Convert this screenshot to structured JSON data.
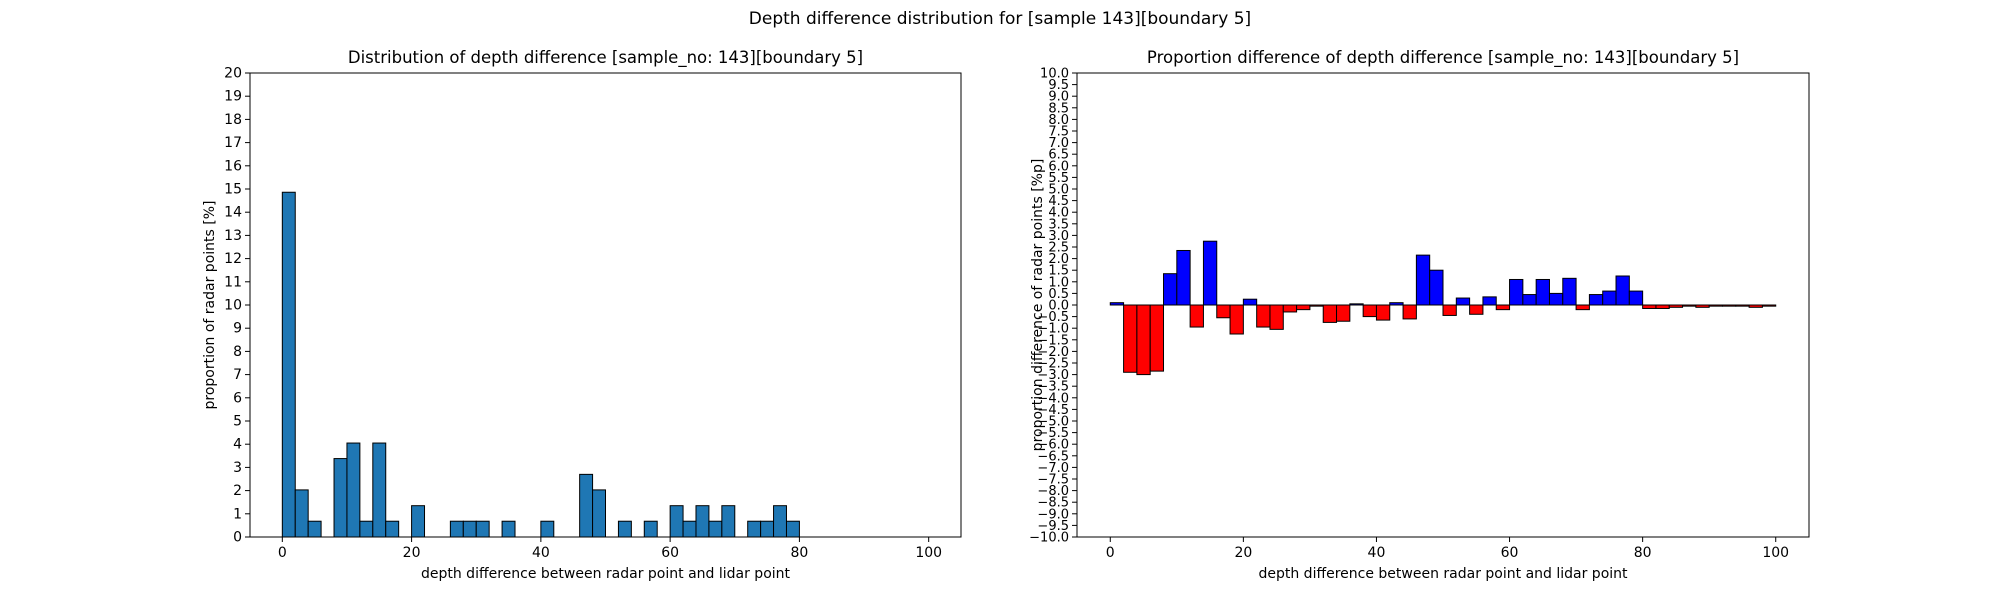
{
  "figure": {
    "suptitle": "Depth difference distribution for [sample 143][boundary 5]"
  },
  "chart_data": [
    {
      "type": "bar",
      "title": "Distribution of depth difference [sample_no: 143][boundary 5]",
      "xlabel": "depth difference between radar point and lidar point",
      "ylabel": "proportion of radar points [%]",
      "xlim": [
        -5,
        105
      ],
      "ylim": [
        0,
        20
      ],
      "x_ticks": [
        0,
        20,
        40,
        60,
        80,
        100
      ],
      "y_ticks": [
        0,
        1,
        2,
        3,
        4,
        5,
        6,
        7,
        8,
        9,
        10,
        11,
        12,
        13,
        14,
        15,
        16,
        17,
        18,
        19,
        20
      ],
      "bin_width": 2,
      "bin_edges_start": 0,
      "values": [
        14.86,
        2.03,
        0.68,
        0,
        3.38,
        4.05,
        0.68,
        4.05,
        0.68,
        0,
        1.35,
        0,
        0,
        0.68,
        0.68,
        0.68,
        0,
        0.68,
        0,
        0,
        0.68,
        0,
        0,
        2.7,
        2.03,
        0,
        0.68,
        0,
        0.68,
        0,
        1.35,
        0.68,
        1.35,
        0.68,
        1.35,
        0,
        0.68,
        0.68,
        1.35,
        0.68,
        0,
        0,
        0,
        0,
        0,
        0,
        0,
        0,
        0,
        0
      ],
      "colors": {
        "bar": "#1f77b4",
        "edge": "#000000"
      },
      "grid": false
    },
    {
      "type": "bar",
      "title": "Proportion difference of depth difference [sample_no: 143][boundary 5]",
      "xlabel": "depth difference between radar point and lidar point",
      "ylabel": "proportion difference of radar points [%p]",
      "xlim": [
        -5,
        105
      ],
      "ylim": [
        -10,
        10
      ],
      "x_ticks": [
        0,
        20,
        40,
        60,
        80,
        100
      ],
      "y_ticks": [
        -10,
        -9.5,
        -9,
        -8.5,
        -8,
        -7.5,
        -7,
        -6.5,
        -6,
        -5.5,
        -5,
        -4.5,
        -4,
        -3.5,
        -3,
        -2.5,
        -2,
        -1.5,
        -1,
        -0.5,
        0,
        0.5,
        1,
        1.5,
        2,
        2.5,
        3,
        3.5,
        4,
        4.5,
        5,
        5.5,
        6,
        6.5,
        7,
        7.5,
        8,
        8.5,
        9,
        9.5,
        10
      ],
      "bin_width": 2,
      "bin_edges_start": 0,
      "values": [
        0.1,
        -2.9,
        -3.0,
        -2.85,
        1.35,
        2.35,
        -0.95,
        2.75,
        -0.55,
        -1.25,
        0.25,
        -0.95,
        -1.05,
        -0.3,
        -0.2,
        -0.05,
        -0.75,
        -0.7,
        0.05,
        -0.5,
        -0.65,
        0.1,
        -0.6,
        2.15,
        1.5,
        -0.45,
        0.3,
        -0.4,
        0.35,
        -0.2,
        1.1,
        0.45,
        1.1,
        0.5,
        1.15,
        -0.2,
        0.45,
        0.6,
        1.25,
        0.6,
        -0.15,
        -0.15,
        -0.1,
        -0.05,
        -0.1,
        -0.05,
        -0.05,
        -0.05,
        -0.1,
        -0.05
      ],
      "colors": {
        "positive": "#0000ff",
        "negative": "#ff0000",
        "edge": "#000000"
      },
      "grid": false
    }
  ]
}
